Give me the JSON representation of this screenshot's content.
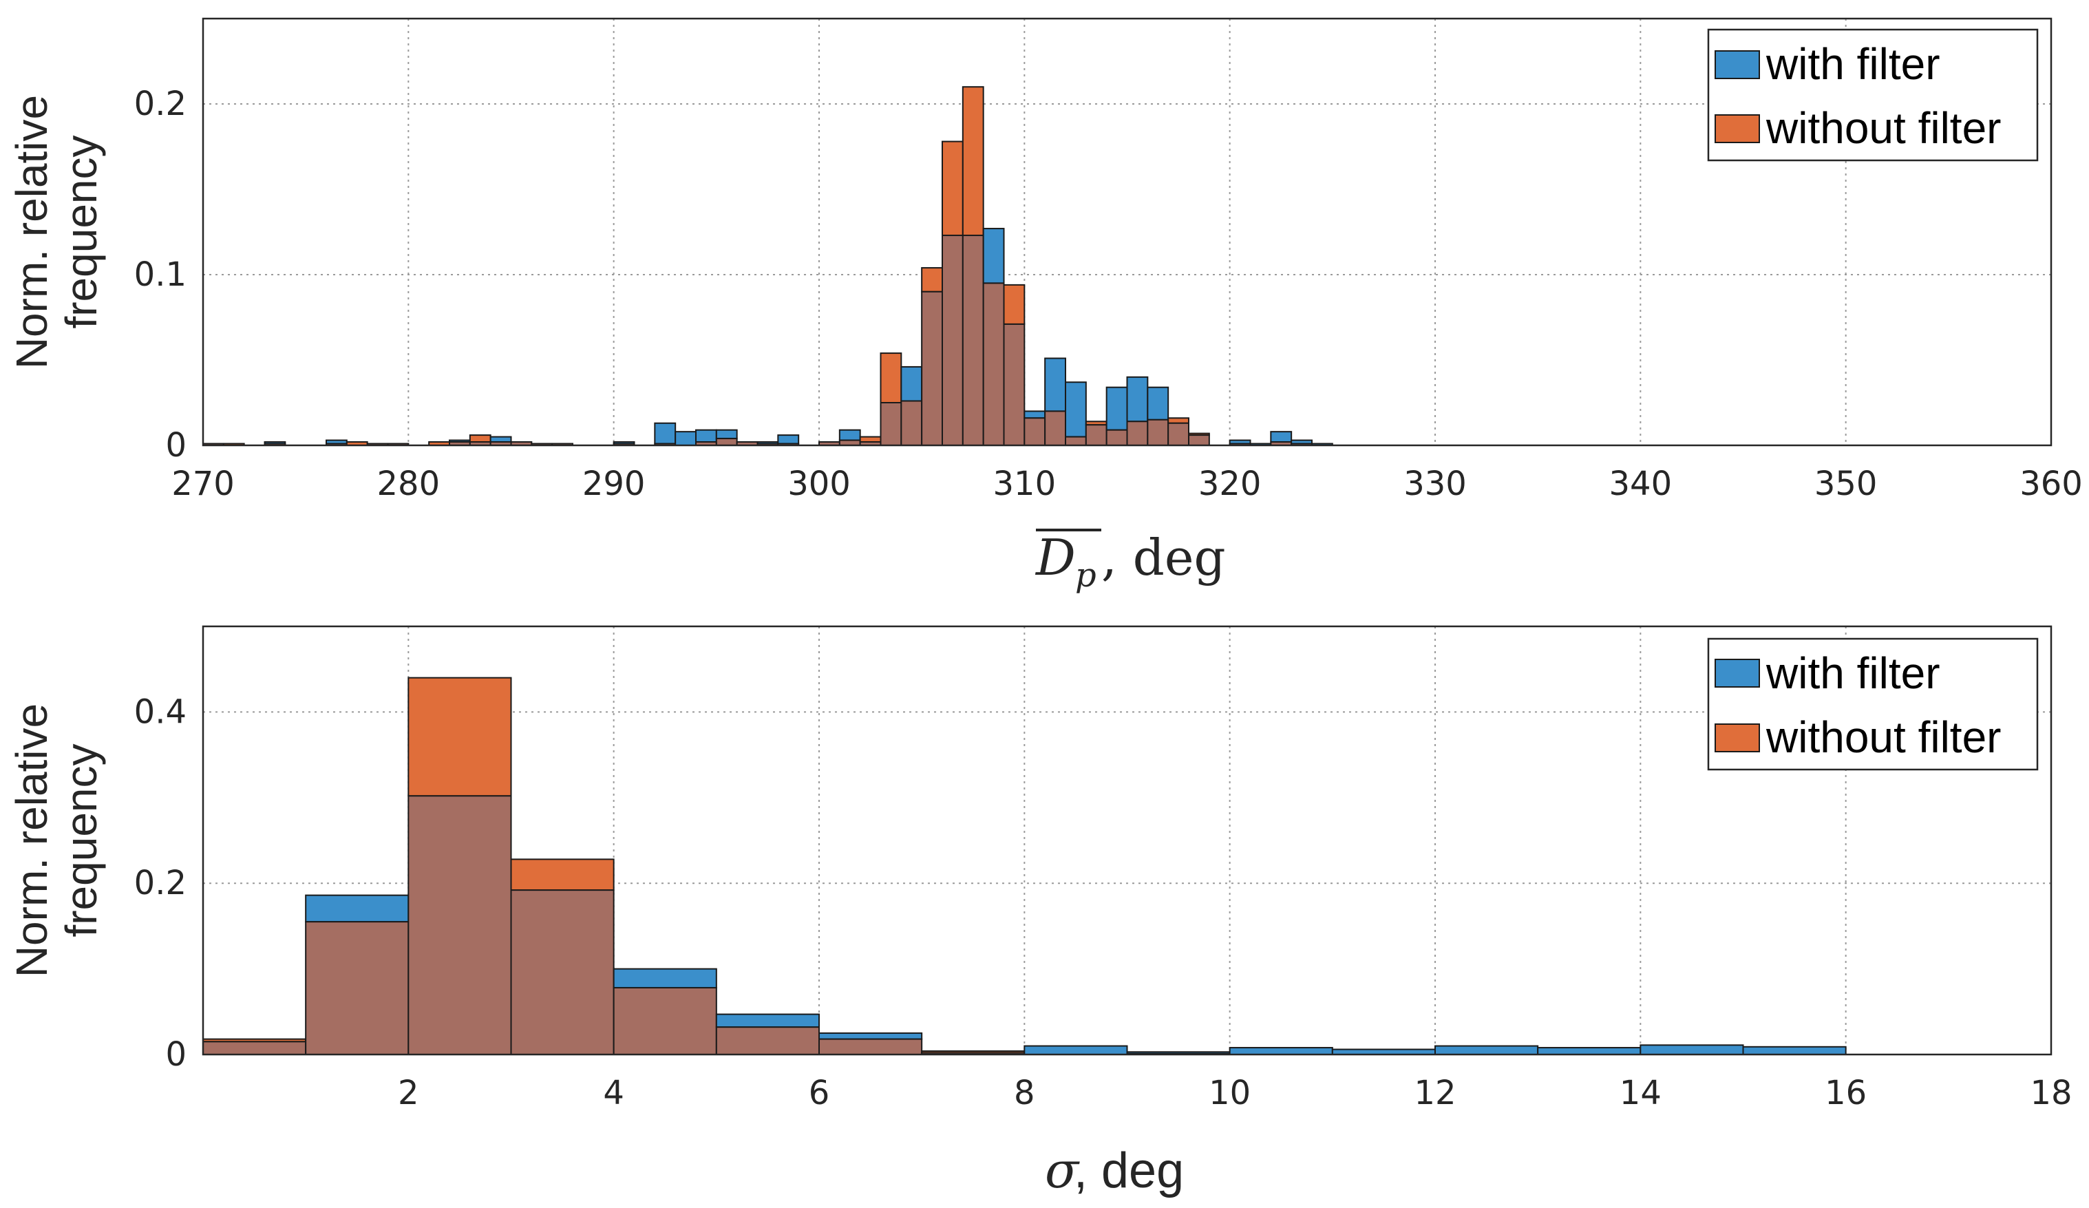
{
  "colors": {
    "with_filter": "#3B8FCB",
    "without_filter": "#E06E3A",
    "overlap": "#A56E62"
  },
  "chart_data": [
    {
      "type": "bar",
      "title": "",
      "xlabel_math": "D",
      "xlabel_sub": "p",
      "xlabel_suffix": ", deg",
      "ylabel_line1": "Norm. relative",
      "ylabel_line2": "frequency",
      "xlim": [
        270,
        360
      ],
      "ylim": [
        0,
        0.25
      ],
      "xticks": [
        270,
        280,
        290,
        300,
        310,
        320,
        330,
        340,
        350,
        360
      ],
      "xtick_labels": [
        "270",
        "280",
        "290",
        "300",
        "310",
        "320",
        "330",
        "340",
        "350",
        "360"
      ],
      "yticks": [
        0,
        0.1,
        0.2
      ],
      "ytick_labels": [
        "0",
        "0.1",
        "0.2"
      ],
      "grid": true,
      "legend_position": "top-right",
      "bin_start": 270,
      "bin_width": 1,
      "series": [
        {
          "name": "with filter",
          "values": [
            0.001,
            0.0,
            0.0,
            0.002,
            0.0,
            0.0,
            0.003,
            0.0,
            0.001,
            0.001,
            0.0,
            0.0,
            0.003,
            0.002,
            0.005,
            0.002,
            0.001,
            0.001,
            0.0,
            0.0,
            0.002,
            0.0,
            0.013,
            0.008,
            0.009,
            0.009,
            0.002,
            0.002,
            0.006,
            0.0,
            0.002,
            0.009,
            0.002,
            0.025,
            0.046,
            0.09,
            0.123,
            0.123,
            0.127,
            0.071,
            0.02,
            0.051,
            0.037,
            0.012,
            0.034,
            0.04,
            0.034,
            0.013,
            0.006,
            0.0,
            0.003,
            0.001,
            0.008,
            0.003,
            0.001
          ]
        },
        {
          "name": "without filter",
          "values": [
            0.001,
            0.001,
            0.0,
            0.001,
            0.0,
            0.0,
            0.001,
            0.002,
            0.001,
            0.001,
            0.0,
            0.002,
            0.002,
            0.006,
            0.002,
            0.002,
            0.001,
            0.001,
            0.0,
            0.0,
            0.001,
            0.0,
            0.001,
            0.0,
            0.002,
            0.004,
            0.002,
            0.001,
            0.001,
            0.0,
            0.002,
            0.003,
            0.005,
            0.054,
            0.026,
            0.104,
            0.178,
            0.21,
            0.095,
            0.094,
            0.016,
            0.02,
            0.005,
            0.014,
            0.009,
            0.014,
            0.015,
            0.016,
            0.007,
            0.0,
            0.001,
            0.0,
            0.002,
            0.001,
            0.0
          ]
        }
      ]
    },
    {
      "type": "bar",
      "title": "",
      "xlabel_math": "σ",
      "xlabel_suffix": ", deg",
      "ylabel_line1": "Norm. relative",
      "ylabel_line2": "frequency",
      "xlim": [
        0,
        18
      ],
      "ylim": [
        0,
        0.5
      ],
      "xticks": [
        2,
        4,
        6,
        8,
        10,
        12,
        14,
        16,
        18
      ],
      "xtick_labels": [
        "2",
        "4",
        "6",
        "8",
        "10",
        "12",
        "14",
        "16",
        "18"
      ],
      "yticks": [
        0,
        0.2,
        0.4
      ],
      "ytick_labels": [
        "0",
        "0.2",
        "0.4"
      ],
      "grid": true,
      "legend_position": "top-right",
      "bin_edges": [
        -1,
        1,
        2,
        3,
        4,
        5,
        6,
        7,
        8,
        9,
        10,
        11,
        12,
        13,
        14,
        15,
        16
      ],
      "series": [
        {
          "name": "with filter",
          "values": [
            0.015,
            0.186,
            0.302,
            0.192,
            0.1,
            0.047,
            0.025,
            0.002,
            0.01,
            0.003,
            0.008,
            0.006,
            0.01,
            0.008,
            0.011,
            0.009
          ]
        },
        {
          "name": "without filter",
          "values": [
            0.018,
            0.155,
            0.44,
            0.228,
            0.078,
            0.032,
            0.018,
            0.004,
            0.0,
            0.001,
            0.0,
            0.0,
            0.0,
            0.0,
            0.0,
            0.0
          ]
        }
      ]
    }
  ],
  "legend": {
    "with_filter_label": "with filter",
    "without_filter_label": "without filter"
  }
}
